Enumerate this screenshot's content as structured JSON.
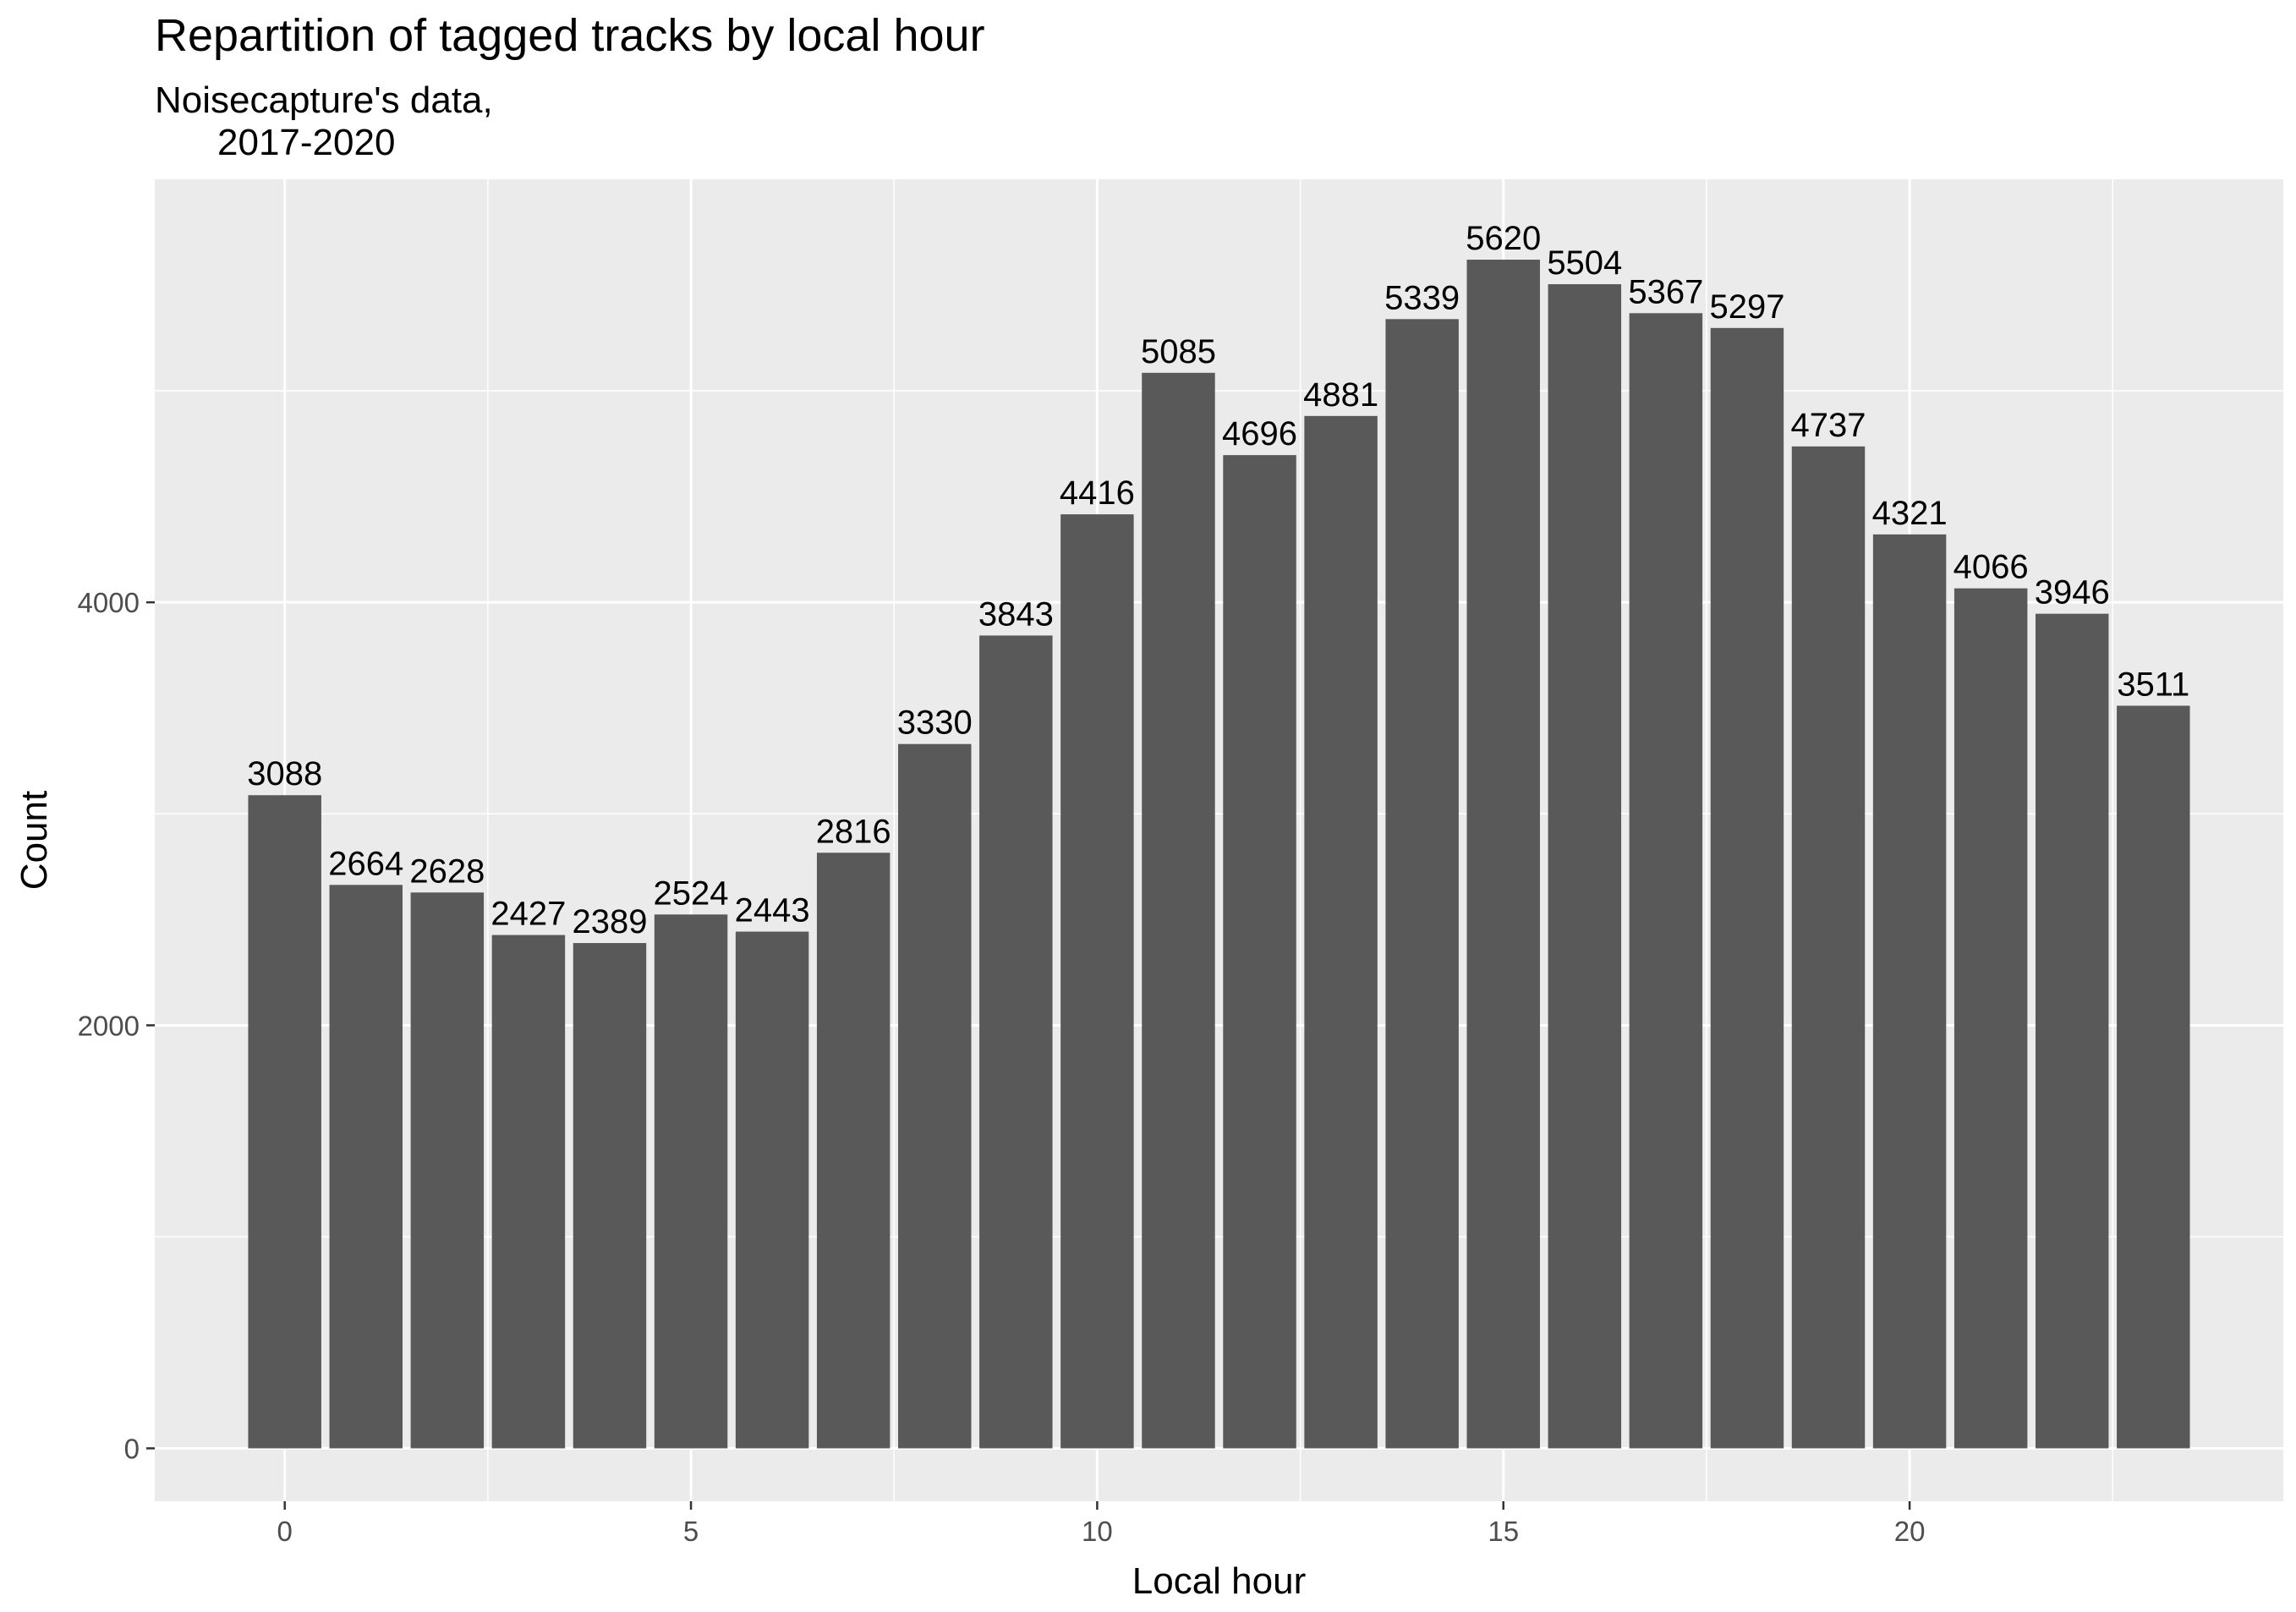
{
  "chart_data": {
    "type": "bar",
    "title": "Repartition of tagged tracks by local hour",
    "subtitle": [
      "Noisecapture's data,",
      "2017-2020"
    ],
    "xlabel": "Local hour",
    "ylabel": "Count",
    "x": [
      0,
      1,
      2,
      3,
      4,
      5,
      6,
      7,
      8,
      9,
      10,
      11,
      12,
      13,
      14,
      15,
      16,
      17,
      18,
      19,
      20,
      21,
      22,
      23
    ],
    "values": [
      3088,
      2664,
      2628,
      2427,
      2389,
      2524,
      2443,
      2816,
      3330,
      3843,
      4416,
      5085,
      4696,
      4881,
      5339,
      5620,
      5504,
      5367,
      5297,
      4737,
      4321,
      4066,
      3946,
      3511
    ],
    "data_labels": [
      "3088",
      "2664",
      "2628",
      "2427",
      "2389",
      "2524",
      "2443",
      "2816",
      "3330",
      "3843",
      "4416",
      "5085",
      "4696",
      "4881",
      "5339",
      "5620",
      "5504",
      "5367",
      "5297",
      "4737",
      "4321",
      "4066",
      "3946",
      "3511"
    ],
    "xlim": [
      -1.6,
      24.6
    ],
    "ylim": [
      -250,
      6000
    ],
    "x_ticks": [
      0,
      5,
      10,
      15,
      20
    ],
    "x_tick_labels": [
      "0",
      "5",
      "10",
      "15",
      "20"
    ],
    "y_ticks": [
      0,
      2000,
      4000
    ],
    "y_tick_labels": [
      "0",
      "2000",
      "4000"
    ],
    "grid": true,
    "colors": {
      "bar": "#595959",
      "panel": "#ebebeb",
      "grid": "#ffffff"
    }
  }
}
